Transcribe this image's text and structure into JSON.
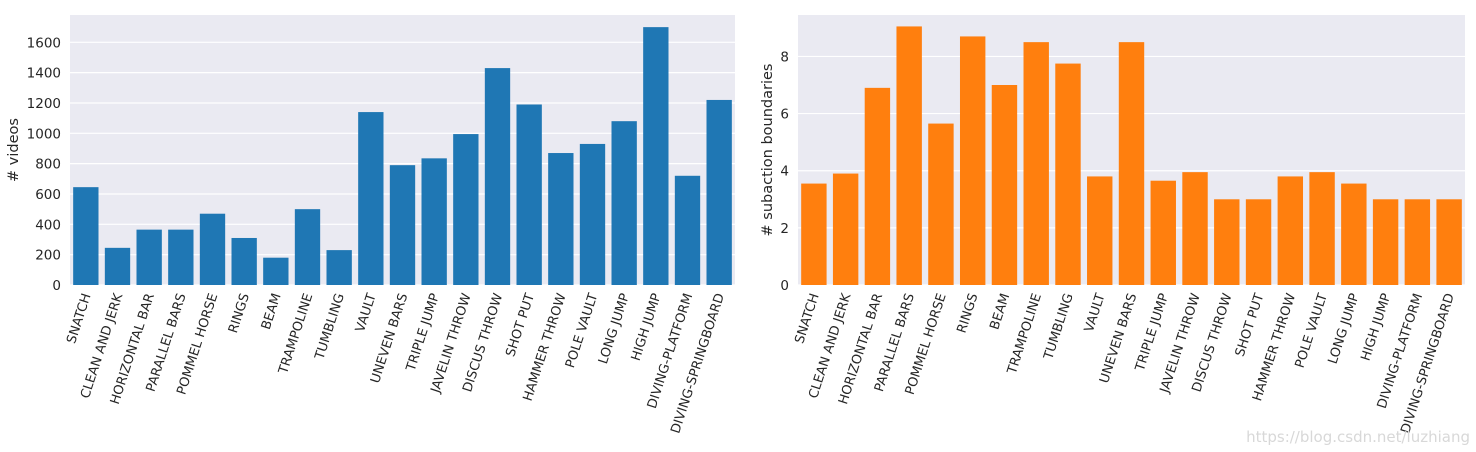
{
  "chart_data": [
    {
      "type": "bar",
      "title": "",
      "xlabel": "",
      "ylabel": "# videos",
      "color": "#1f77b4",
      "ylim": [
        0,
        1780
      ],
      "yticks": [
        0,
        200,
        400,
        600,
        800,
        1000,
        1200,
        1400,
        1600
      ],
      "grid": true,
      "categories": [
        "SNATCH",
        "CLEAN AND JERK",
        "HORIZONTAL BAR",
        "PARALLEL BARS",
        "POMMEL HORSE",
        "RINGS",
        "BEAM",
        "TRAMPOLINE",
        "TUMBLING",
        "VAULT",
        "UNEVEN BARS",
        "TRIPLE JUMP",
        "JAVELIN THROW",
        "DISCUS THROW",
        "SHOT PUT",
        "HAMMER THROW",
        "POLE VAULT",
        "LONG JUMP",
        "HIGH JUMP",
        "DIVING-PLATFORM",
        "DIVING-SPRINGBOARD"
      ],
      "values": [
        645,
        245,
        365,
        365,
        470,
        310,
        180,
        500,
        230,
        1140,
        790,
        835,
        995,
        1430,
        1190,
        870,
        930,
        1080,
        1700,
        720,
        1220
      ]
    },
    {
      "type": "bar",
      "title": "",
      "xlabel": "",
      "ylabel": "# subaction boundaries",
      "color": "#ff7f0e",
      "ylim": [
        0,
        9.45
      ],
      "yticks": [
        0,
        2,
        4,
        6,
        8
      ],
      "grid": true,
      "categories": [
        "SNATCH",
        "CLEAN AND JERK",
        "HORIZONTAL BAR",
        "PARALLEL BARS",
        "POMMEL HORSE",
        "RINGS",
        "BEAM",
        "TRAMPOLINE",
        "TUMBLING",
        "VAULT",
        "UNEVEN BARS",
        "TRIPLE JUMP",
        "JAVELIN THROW",
        "DISCUS THROW",
        "SHOT PUT",
        "HAMMER THROW",
        "POLE VAULT",
        "LONG JUMP",
        "HIGH JUMP",
        "DIVING-PLATFORM",
        "DIVING-SPRINGBOARD"
      ],
      "values": [
        3.55,
        3.9,
        6.9,
        9.05,
        5.65,
        8.7,
        7.0,
        8.5,
        7.75,
        3.8,
        8.5,
        3.65,
        3.95,
        3.0,
        3.0,
        3.8,
        3.95,
        3.55,
        3.0,
        3.0,
        3.0
      ]
    }
  ],
  "watermark": "https://blog.csdn.net/luzhiang"
}
